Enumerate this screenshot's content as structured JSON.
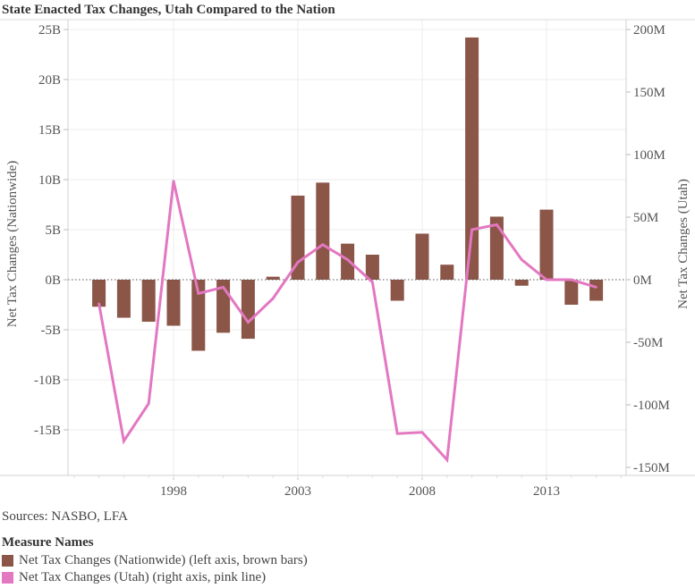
{
  "title": "State Enacted Tax Changes, Utah Compared to the Nation",
  "sources": "Sources: NASBO, LFA",
  "legend": {
    "title": "Measure Names",
    "items": [
      {
        "label": "Net Tax Changes (Nationwide) (left axis, brown bars)",
        "color": "#8b5548"
      },
      {
        "label": "Net Tax Changes (Utah) (right axis, pink line)",
        "color": "#e377c2"
      }
    ]
  },
  "chart_data": {
    "type": "bar",
    "title": "State Enacted Tax Changes, Utah Compared to the Nation",
    "xlabel": "",
    "x": [
      1995,
      1996,
      1997,
      1998,
      1999,
      2000,
      2001,
      2002,
      2003,
      2004,
      2005,
      2006,
      2007,
      2008,
      2009,
      2010,
      2011,
      2012,
      2013,
      2014,
      2015
    ],
    "x_ticks": [
      "1998",
      "2003",
      "2008",
      "2013"
    ],
    "x_tick_values": [
      1998,
      2003,
      2008,
      2013
    ],
    "xlim": [
      1990.8,
      2016.3
    ],
    "left_axis": {
      "label": "Net Tax Changes (Nationwide)",
      "unit": "B",
      "ylim": [
        -19.4,
        25.5
      ],
      "ticks": [
        25,
        20,
        15,
        10,
        5,
        0,
        -5,
        -10,
        -15
      ],
      "tick_labels": [
        "25B",
        "20B",
        "15B",
        "10B",
        "5B",
        "0B",
        "-5B",
        "-10B",
        "-15B"
      ]
    },
    "right_axis": {
      "label": "Net Tax Changes (Utah)",
      "unit": "M",
      "ylim": [
        -157,
        204
      ],
      "ticks": [
        200,
        150,
        100,
        50,
        0,
        -50,
        -100,
        -150
      ],
      "tick_labels": [
        "200M",
        "150M",
        "100M",
        "50M",
        "0M",
        "-50M",
        "-100M",
        "-150M"
      ]
    },
    "series": [
      {
        "name": "Net Tax Changes (Nationwide)",
        "type": "bar",
        "axis": "left",
        "color": "#8b5548",
        "values": [
          -2.7,
          -3.8,
          -4.2,
          -4.6,
          -7.1,
          -5.3,
          -5.9,
          0.3,
          8.4,
          9.7,
          3.6,
          2.5,
          -2.1,
          4.6,
          1.5,
          24.2,
          6.3,
          -0.6,
          7.0,
          -2.5,
          -2.1
        ]
      },
      {
        "name": "Net Tax Changes (Utah)",
        "type": "line",
        "axis": "right",
        "color": "#e377c2",
        "values": [
          -19,
          -129,
          -99,
          79,
          -11,
          -6,
          -34,
          -15,
          14,
          28,
          16,
          -2,
          -123,
          -122,
          -144,
          40,
          44,
          16,
          0,
          0,
          -6
        ]
      }
    ],
    "grid": true,
    "zero_line": "dotted",
    "legend_position": "bottom-left"
  }
}
